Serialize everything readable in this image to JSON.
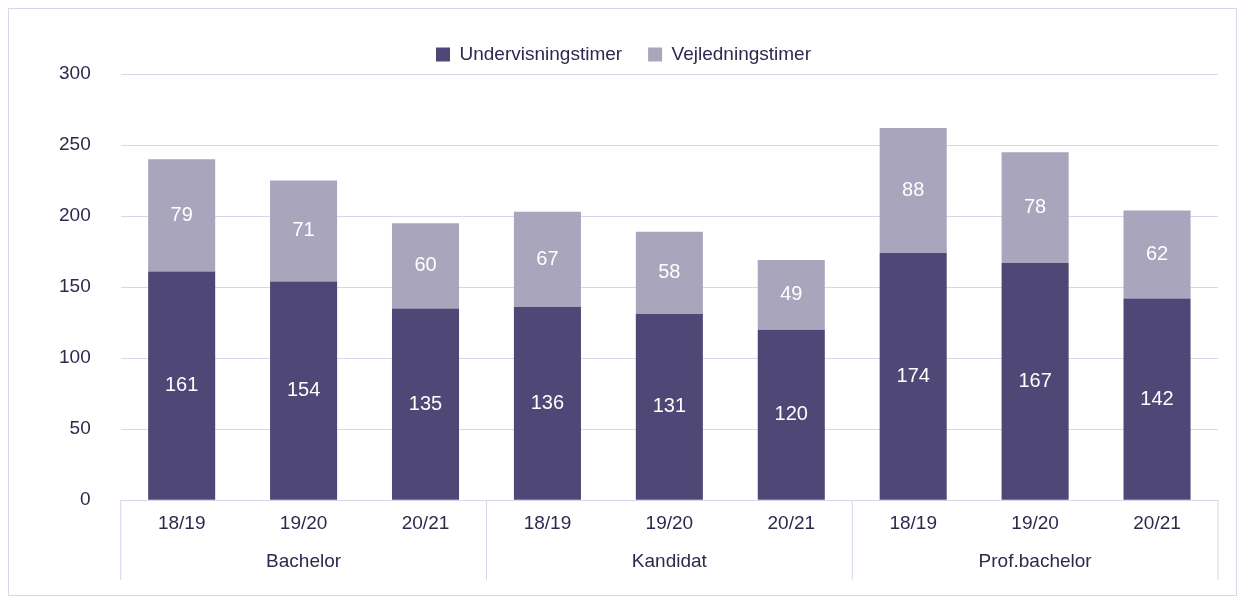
{
  "chart_data": {
    "type": "bar",
    "stacked": true,
    "categories": [
      "18/19",
      "19/20",
      "20/21",
      "18/19",
      "19/20",
      "20/21",
      "18/19",
      "19/20",
      "20/21"
    ],
    "series": [
      {
        "name": "Undervisningstimer",
        "color": "#4f4775",
        "values": [
          161,
          154,
          135,
          136,
          131,
          120,
          174,
          167,
          142
        ]
      },
      {
        "name": "Vejledningstimer",
        "color": "#a9a5bd",
        "values": [
          79,
          71,
          60,
          67,
          58,
          49,
          88,
          78,
          62
        ]
      }
    ],
    "annotations": [
      "Bachelor",
      "Kandidat",
      "Prof.bachelor"
    ],
    "ylim": [
      0,
      300
    ],
    "yticks": [
      0,
      50,
      100,
      150,
      200,
      250,
      300
    ],
    "grid": "y",
    "legend": "top",
    "data_labels": true
  }
}
